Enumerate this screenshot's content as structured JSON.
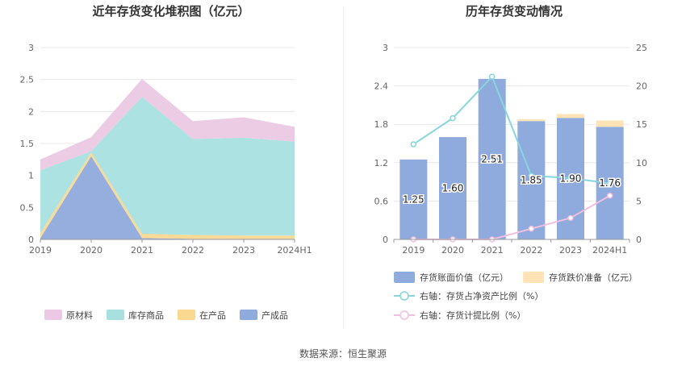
{
  "footer": "数据来源：恒生聚源",
  "chart_data": [
    {
      "type": "area",
      "title": "近年存货变化堆积图（亿元）",
      "categories": [
        "2019",
        "2020",
        "2021",
        "2022",
        "2023",
        "2024H1"
      ],
      "ylim": [
        0,
        3
      ],
      "yticks": [
        "0",
        "0.5",
        "1",
        "1.5",
        "2",
        "2.5",
        "3"
      ],
      "stacked": true,
      "series": [
        {
          "name": "产成品",
          "color": "#8faadc",
          "values": [
            0.02,
            1.3,
            0.02,
            0.01,
            0.01,
            0.01
          ]
        },
        {
          "name": "在产品",
          "color": "#fbd890",
          "values": [
            0.08,
            0.06,
            0.07,
            0.06,
            0.05,
            0.05
          ]
        },
        {
          "name": "库存商品",
          "color": "#a8e0df",
          "values": [
            0.98,
            0.02,
            2.14,
            1.5,
            1.53,
            1.47
          ]
        },
        {
          "name": "原材料",
          "color": "#ebc8e3",
          "values": [
            0.17,
            0.22,
            0.28,
            0.28,
            0.32,
            0.23
          ]
        }
      ],
      "legend_order": [
        "原材料",
        "库存商品",
        "在产品",
        "产成品"
      ],
      "legend_position": "bottom",
      "grid": true
    },
    {
      "type": "bar",
      "title": "历年存货变动情况",
      "categories": [
        "2019",
        "2020",
        "2021",
        "2022",
        "2023",
        "2024H1"
      ],
      "ylim": [
        0,
        3
      ],
      "yticks": [
        "0",
        "0.6",
        "1.2",
        "1.8",
        "2.4",
        "3"
      ],
      "y2lim": [
        0,
        25
      ],
      "y2ticks": [
        "0",
        "5",
        "10",
        "15",
        "20",
        "25"
      ],
      "stacked": true,
      "series": [
        {
          "name": "存货账面价值（亿元）",
          "type": "bar",
          "color": "#8faadc",
          "values": [
            1.25,
            1.6,
            2.51,
            1.85,
            1.9,
            1.76
          ],
          "labels": [
            "1.25",
            "1.60",
            "2.51",
            "1.85",
            "1.90",
            "1.76"
          ]
        },
        {
          "name": "存货跌价准备（亿元）",
          "type": "bar",
          "color": "#fde3b6",
          "values": [
            0,
            0,
            0,
            0.03,
            0.06,
            0.1
          ]
        },
        {
          "name": "右轴：存货占净资产比例（%）",
          "type": "line",
          "axis": "right",
          "color": "#86d6dc",
          "values": [
            12.4,
            15.8,
            21.2,
            8.3,
            8.0,
            7.3
          ]
        },
        {
          "name": "右轴：存货计提比例（%）",
          "type": "line",
          "axis": "right",
          "color": "#f1bfe0",
          "values": [
            0.0,
            0.0,
            0.0,
            1.4,
            2.8,
            5.7
          ]
        }
      ],
      "legend_position": "bottom",
      "grid": true
    }
  ]
}
